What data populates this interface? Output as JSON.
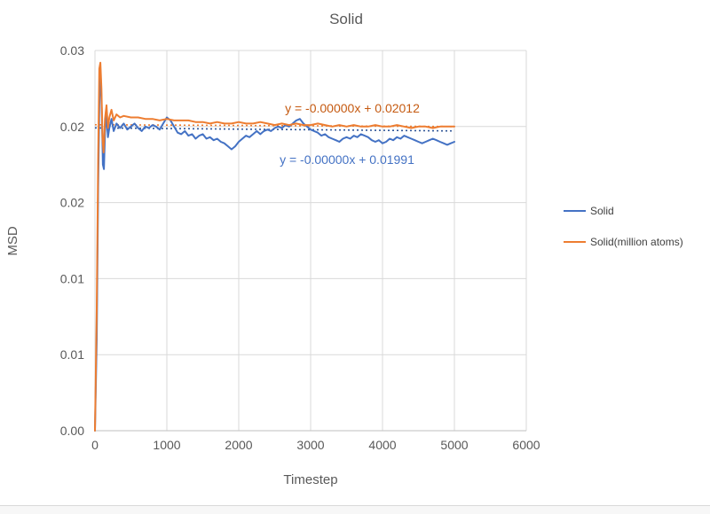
{
  "chart": {
    "title": "Solid",
    "xlabel": "Timestep",
    "ylabel": "MSD",
    "annotations": [
      {
        "text": "y = -0.00000x + 0.02012",
        "color": "#C55A11"
      },
      {
        "text": "y = -0.00000x + 0.01991",
        "color": "#4472C4"
      }
    ]
  },
  "chart_data": {
    "type": "line",
    "title": "Solid",
    "xlabel": "Timestep",
    "ylabel": "MSD",
    "xlim": [
      0,
      6000
    ],
    "ylim": [
      0,
      0.025
    ],
    "grid": true,
    "legend_position": "right",
    "x_ticks": [
      {
        "v": 0,
        "label": "0"
      },
      {
        "v": 1000,
        "label": "1000"
      },
      {
        "v": 2000,
        "label": "2000"
      },
      {
        "v": 3000,
        "label": "3000"
      },
      {
        "v": 4000,
        "label": "4000"
      },
      {
        "v": 5000,
        "label": "5000"
      },
      {
        "v": 6000,
        "label": "6000"
      }
    ],
    "y_ticks": [
      {
        "v": 0,
        "label": "0.00"
      },
      {
        "v": 0.005,
        "label": "0.01"
      },
      {
        "v": 0.01,
        "label": "0.01"
      },
      {
        "v": 0.015,
        "label": "0.02"
      },
      {
        "v": 0.02,
        "label": "0.02"
      },
      {
        "v": 0.025,
        "label": "0.03"
      }
    ],
    "series": [
      {
        "name": "Solid",
        "color": "#4472C4",
        "points": [
          [
            0,
            0
          ],
          [
            25,
            0.006
          ],
          [
            45,
            0.016
          ],
          [
            65,
            0.0228
          ],
          [
            80,
            0.0232
          ],
          [
            95,
            0.021
          ],
          [
            110,
            0.0175
          ],
          [
            125,
            0.0172
          ],
          [
            140,
            0.0196
          ],
          [
            160,
            0.0208
          ],
          [
            180,
            0.0193
          ],
          [
            200,
            0.0199
          ],
          [
            230,
            0.0205
          ],
          [
            260,
            0.0197
          ],
          [
            300,
            0.0202
          ],
          [
            350,
            0.0199
          ],
          [
            400,
            0.0202
          ],
          [
            450,
            0.0198
          ],
          [
            500,
            0.02
          ],
          [
            550,
            0.0202
          ],
          [
            600,
            0.0199
          ],
          [
            650,
            0.0197
          ],
          [
            700,
            0.02
          ],
          [
            750,
            0.0199
          ],
          [
            800,
            0.0201
          ],
          [
            850,
            0.02
          ],
          [
            900,
            0.0198
          ],
          [
            950,
            0.0202
          ],
          [
            1000,
            0.0206
          ],
          [
            1050,
            0.0204
          ],
          [
            1100,
            0.02
          ],
          [
            1150,
            0.0196
          ],
          [
            1200,
            0.0195
          ],
          [
            1250,
            0.0197
          ],
          [
            1300,
            0.0194
          ],
          [
            1350,
            0.0195
          ],
          [
            1400,
            0.0192
          ],
          [
            1450,
            0.0194
          ],
          [
            1500,
            0.0195
          ],
          [
            1550,
            0.0192
          ],
          [
            1600,
            0.0193
          ],
          [
            1650,
            0.0191
          ],
          [
            1700,
            0.0192
          ],
          [
            1750,
            0.019
          ],
          [
            1800,
            0.0189
          ],
          [
            1850,
            0.0187
          ],
          [
            1900,
            0.0185
          ],
          [
            1950,
            0.0187
          ],
          [
            2000,
            0.019
          ],
          [
            2050,
            0.0192
          ],
          [
            2100,
            0.0194
          ],
          [
            2150,
            0.0193
          ],
          [
            2200,
            0.0195
          ],
          [
            2250,
            0.0197
          ],
          [
            2300,
            0.0195
          ],
          [
            2350,
            0.0197
          ],
          [
            2400,
            0.0198
          ],
          [
            2450,
            0.0197
          ],
          [
            2500,
            0.0199
          ],
          [
            2550,
            0.02
          ],
          [
            2600,
            0.0199
          ],
          [
            2650,
            0.0201
          ],
          [
            2700,
            0.02
          ],
          [
            2750,
            0.0202
          ],
          [
            2800,
            0.0204
          ],
          [
            2850,
            0.0205
          ],
          [
            2900,
            0.0202
          ],
          [
            2950,
            0.02
          ],
          [
            3000,
            0.0198
          ],
          [
            3050,
            0.0197
          ],
          [
            3100,
            0.0196
          ],
          [
            3150,
            0.0194
          ],
          [
            3200,
            0.0195
          ],
          [
            3250,
            0.0193
          ],
          [
            3300,
            0.0192
          ],
          [
            3350,
            0.0191
          ],
          [
            3400,
            0.019
          ],
          [
            3450,
            0.0192
          ],
          [
            3500,
            0.0193
          ],
          [
            3550,
            0.0192
          ],
          [
            3600,
            0.0194
          ],
          [
            3650,
            0.0193
          ],
          [
            3700,
            0.0195
          ],
          [
            3750,
            0.0194
          ],
          [
            3800,
            0.0193
          ],
          [
            3850,
            0.0191
          ],
          [
            3900,
            0.019
          ],
          [
            3950,
            0.0191
          ],
          [
            4000,
            0.0189
          ],
          [
            4050,
            0.019
          ],
          [
            4100,
            0.0192
          ],
          [
            4150,
            0.0191
          ],
          [
            4200,
            0.0193
          ],
          [
            4250,
            0.0192
          ],
          [
            4300,
            0.0194
          ],
          [
            4350,
            0.0193
          ],
          [
            4400,
            0.0192
          ],
          [
            4450,
            0.0191
          ],
          [
            4500,
            0.019
          ],
          [
            4550,
            0.0189
          ],
          [
            4600,
            0.019
          ],
          [
            4650,
            0.0191
          ],
          [
            4700,
            0.0192
          ],
          [
            4750,
            0.0191
          ],
          [
            4800,
            0.019
          ],
          [
            4850,
            0.0189
          ],
          [
            4900,
            0.0188
          ],
          [
            4950,
            0.0189
          ],
          [
            5000,
            0.019
          ]
        ]
      },
      {
        "name": "Solid(million atoms)",
        "color": "#ED7D31",
        "points": [
          [
            0,
            0
          ],
          [
            25,
            0.008
          ],
          [
            45,
            0.018
          ],
          [
            60,
            0.0238
          ],
          [
            75,
            0.0242
          ],
          [
            90,
            0.0225
          ],
          [
            105,
            0.0192
          ],
          [
            120,
            0.0183
          ],
          [
            140,
            0.0205
          ],
          [
            160,
            0.0214
          ],
          [
            180,
            0.0199
          ],
          [
            200,
            0.0206
          ],
          [
            230,
            0.0211
          ],
          [
            260,
            0.0204
          ],
          [
            300,
            0.0208
          ],
          [
            350,
            0.0206
          ],
          [
            400,
            0.0207
          ],
          [
            500,
            0.0206
          ],
          [
            600,
            0.0206
          ],
          [
            700,
            0.0205
          ],
          [
            800,
            0.0205
          ],
          [
            900,
            0.0204
          ],
          [
            1000,
            0.0205
          ],
          [
            1100,
            0.0204
          ],
          [
            1200,
            0.0204
          ],
          [
            1300,
            0.0204
          ],
          [
            1400,
            0.0203
          ],
          [
            1500,
            0.0203
          ],
          [
            1600,
            0.0202
          ],
          [
            1700,
            0.0203
          ],
          [
            1800,
            0.0202
          ],
          [
            1900,
            0.0202
          ],
          [
            2000,
            0.0203
          ],
          [
            2100,
            0.0202
          ],
          [
            2200,
            0.0202
          ],
          [
            2300,
            0.0203
          ],
          [
            2400,
            0.0202
          ],
          [
            2500,
            0.0201
          ],
          [
            2600,
            0.0202
          ],
          [
            2700,
            0.0201
          ],
          [
            2800,
            0.0202
          ],
          [
            2900,
            0.0201
          ],
          [
            3000,
            0.0201
          ],
          [
            3100,
            0.0202
          ],
          [
            3200,
            0.0201
          ],
          [
            3300,
            0.02
          ],
          [
            3400,
            0.0201
          ],
          [
            3500,
            0.02
          ],
          [
            3600,
            0.0201
          ],
          [
            3700,
            0.02
          ],
          [
            3800,
            0.02
          ],
          [
            3900,
            0.0201
          ],
          [
            4000,
            0.02
          ],
          [
            4100,
            0.02
          ],
          [
            4200,
            0.0201
          ],
          [
            4300,
            0.02
          ],
          [
            4400,
            0.0199
          ],
          [
            4500,
            0.02
          ],
          [
            4600,
            0.02
          ],
          [
            4700,
            0.0199
          ],
          [
            4800,
            0.02
          ],
          [
            4900,
            0.02
          ],
          [
            5000,
            0.02
          ]
        ]
      }
    ],
    "trendlines": [
      {
        "series": "Solid(million atoms)",
        "equation": "y = -0.00000x + 0.02012",
        "intercept": 0.02012,
        "slope": -2.4e-08,
        "x_range": [
          0,
          5000
        ],
        "color": "#ED7D31",
        "style": "dotted"
      },
      {
        "series": "Solid",
        "equation": "y = -0.00000x + 0.01991",
        "intercept": 0.01991,
        "slope": -4e-08,
        "x_range": [
          0,
          5000
        ],
        "color": "#2F5597",
        "style": "dotted"
      }
    ]
  }
}
